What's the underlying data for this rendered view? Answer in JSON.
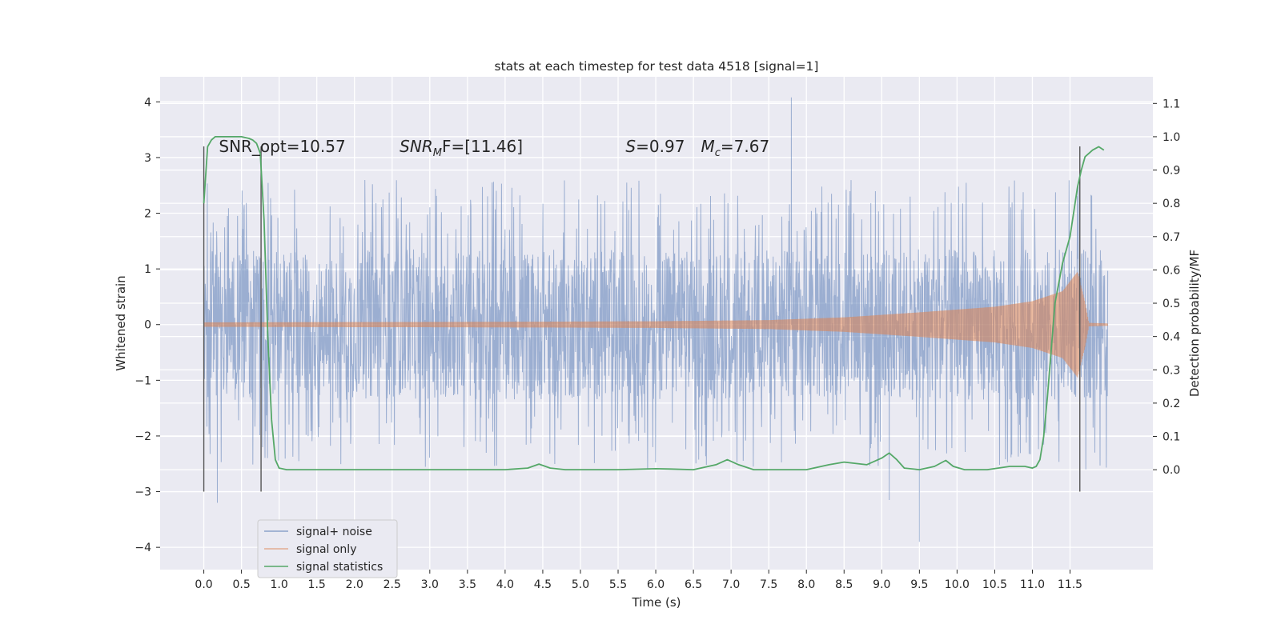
{
  "chart_data": {
    "type": "line",
    "title": "stats at each timestep for test data 4518 [signal=1]",
    "xlabel": "Time (s)",
    "ylabel": "Whitened strain",
    "ylabel_right": "Detection probability/MF",
    "xlim": [
      -0.58,
      12.6
    ],
    "ylim": [
      -4.4,
      4.45
    ],
    "ylim_right": [
      -0.3,
      1.18
    ],
    "x_ticks": [
      0.0,
      0.5,
      1.0,
      1.5,
      2.0,
      2.5,
      3.0,
      3.5,
      4.0,
      4.5,
      5.0,
      5.5,
      6.0,
      6.5,
      7.0,
      7.5,
      8.0,
      8.5,
      9.0,
      9.5,
      10.0,
      10.5,
      11.0,
      11.5
    ],
    "x_tick_labels": [
      "0.0",
      "0.5",
      "1.0",
      "1.5",
      "2.0",
      "2.5",
      "3.0",
      "3.5",
      "4.0",
      "4.5",
      "5.0",
      "5.5",
      "6.0",
      "6.5",
      "7.0",
      "7.5",
      "8.0",
      "8.5",
      "9.0",
      "9.5",
      "10.0",
      "10.5",
      "11.0",
      "11.5"
    ],
    "y_ticks": [
      4,
      3,
      2,
      1,
      0,
      -1,
      -2,
      -3,
      -4
    ],
    "y_tick_labels": [
      "4",
      "3",
      "2",
      "1",
      "0",
      "−1",
      "−2",
      "−3",
      "−4"
    ],
    "y_ticks_right": [
      1.1,
      1.0,
      0.9,
      0.8,
      0.7,
      0.6,
      0.5,
      0.4,
      0.3,
      0.2,
      0.1,
      0.0
    ],
    "y_tick_labels_right": [
      "1.1",
      "1.0",
      "0.9",
      "0.8",
      "0.7",
      "0.6",
      "0.5",
      "0.4",
      "0.3",
      "0.2",
      "0.1",
      "0.0"
    ],
    "grid": true,
    "legend_position": "lower-left",
    "noise": {
      "x_range": [
        0.0,
        12.0
      ],
      "band_low": -1.35,
      "band_high": 1.35,
      "notable_peaks": [
        {
          "x": 7.8,
          "y": 4.08
        },
        {
          "x": 0.18,
          "y": -3.2
        },
        {
          "x": 9.5,
          "y": -3.9
        },
        {
          "x": 9.1,
          "y": -3.15
        }
      ]
    },
    "series": [
      {
        "name": "signal+ noise",
        "color": "#4c72b0",
        "style": "noise"
      },
      {
        "name": "signal only",
        "color": "#dd8452",
        "style": "chirp",
        "envelope": [
          [
            0.0,
            0.04
          ],
          [
            4.0,
            0.05
          ],
          [
            6.0,
            0.06
          ],
          [
            7.5,
            0.08
          ],
          [
            8.5,
            0.13
          ],
          [
            9.5,
            0.22
          ],
          [
            10.5,
            0.32
          ],
          [
            11.0,
            0.42
          ],
          [
            11.4,
            0.6
          ],
          [
            11.6,
            0.95
          ],
          [
            11.7,
            0.4
          ],
          [
            11.75,
            0.03
          ],
          [
            12.0,
            0.02
          ]
        ]
      },
      {
        "name": "signal statistics",
        "color": "#55a868",
        "style": "line",
        "axis": "right",
        "x": [
          0.0,
          0.05,
          0.1,
          0.15,
          0.2,
          0.3,
          0.4,
          0.5,
          0.6,
          0.65,
          0.7,
          0.75,
          0.8,
          0.85,
          0.9,
          0.95,
          1.0,
          1.1,
          1.5,
          2.0,
          3.0,
          4.0,
          4.3,
          4.45,
          4.6,
          4.8,
          5.5,
          6.0,
          6.2,
          6.5,
          6.8,
          6.95,
          7.1,
          7.3,
          8.0,
          8.3,
          8.5,
          8.8,
          9.0,
          9.1,
          9.2,
          9.3,
          9.5,
          9.7,
          9.85,
          9.95,
          10.1,
          10.4,
          10.7,
          10.9,
          11.0,
          11.05,
          11.1,
          11.15,
          11.2,
          11.3,
          11.4,
          11.5,
          11.6,
          11.65,
          11.7,
          11.8,
          11.88,
          11.95
        ],
        "y": [
          0.8,
          0.97,
          0.99,
          1.0,
          1.0,
          1.0,
          1.0,
          1.0,
          0.995,
          0.99,
          0.98,
          0.95,
          0.75,
          0.4,
          0.15,
          0.03,
          0.005,
          0.0,
          0.0,
          0.0,
          0.0,
          0.0,
          0.005,
          0.017,
          0.005,
          0.0,
          0.0,
          0.003,
          0.002,
          0.0,
          0.015,
          0.03,
          0.015,
          0.0,
          0.0,
          0.015,
          0.023,
          0.015,
          0.035,
          0.05,
          0.03,
          0.005,
          0.0,
          0.01,
          0.028,
          0.01,
          0.0,
          0.0,
          0.01,
          0.01,
          0.005,
          0.01,
          0.03,
          0.1,
          0.22,
          0.5,
          0.62,
          0.7,
          0.85,
          0.9,
          0.94,
          0.96,
          0.97,
          0.96
        ]
      }
    ],
    "vlines": [
      {
        "x": 0.0,
        "ymin": -3.0,
        "ymax": 3.2
      },
      {
        "x": 0.76,
        "ymin": -3.0,
        "ymax": 3.2
      },
      {
        "x": 11.63,
        "ymin": -3.0,
        "ymax": 3.2
      }
    ],
    "annotations": [
      {
        "id": "snr-opt",
        "parts": [
          "SNR_opt=10.57"
        ],
        "x": 0.2,
        "y": 3.1
      },
      {
        "id": "snr-mf",
        "parts": [
          "SNR",
          "M",
          "F=[11.46]"
        ],
        "x": 2.6,
        "y": 3.1
      },
      {
        "id": "stat-s",
        "parts": [
          "S",
          "=0.97"
        ],
        "x": 5.6,
        "y": 3.1
      },
      {
        "id": "stat-mc",
        "parts": [
          "M",
          "c",
          "=7.67"
        ],
        "x": 6.6,
        "y": 3.1
      }
    ]
  }
}
